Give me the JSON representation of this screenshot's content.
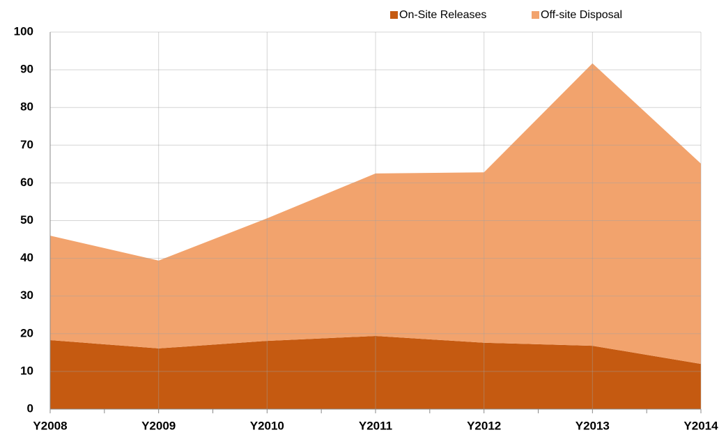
{
  "chart_data": {
    "type": "stacked_area",
    "categories": [
      "Y2008",
      "Y2009",
      "Y2010",
      "Y2011",
      "Y2012",
      "Y2013",
      "Y2014"
    ],
    "series": [
      {
        "name": "On-Site Releases",
        "color": "#c55a11",
        "values": [
          18.3,
          16.1,
          18.1,
          19.4,
          17.6,
          16.8,
          12.0
        ]
      },
      {
        "name": "Off-site Disposal",
        "color": "#f2a36d",
        "values": [
          27.7,
          23.3,
          32.5,
          43.1,
          45.2,
          74.9,
          53.1
        ]
      }
    ],
    "ylim": [
      0,
      100
    ],
    "yticks": [
      0,
      10,
      20,
      30,
      40,
      50,
      60,
      70,
      80,
      90,
      100
    ],
    "grid": true,
    "legend": "top"
  }
}
